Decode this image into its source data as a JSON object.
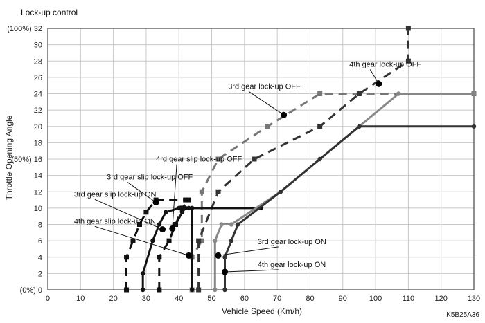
{
  "chart_data": {
    "type": "line",
    "title": "Lock-up control",
    "xlabel": "Vehicle Speed (Km/h)",
    "ylabel": "Throttle Opening Angle",
    "xlim": [
      0,
      130
    ],
    "ylim": [
      0,
      32
    ],
    "x_ticks": [
      0,
      10,
      20,
      30,
      40,
      50,
      60,
      70,
      80,
      90,
      100,
      110,
      120,
      130
    ],
    "y_ticks": [
      0,
      2,
      4,
      6,
      8,
      10,
      12,
      14,
      16,
      18,
      20,
      22,
      24,
      26,
      28,
      30,
      32
    ],
    "y_tick_labels": [
      "(0%) 0",
      "2",
      "4",
      "6",
      "8",
      "10",
      "12",
      "14",
      "(50%) 16",
      "18",
      "20",
      "22",
      "24",
      "26",
      "28",
      "30",
      "(100%) 32"
    ],
    "grid": true,
    "code": "K5B25A36",
    "series": [
      {
        "name": "3rd gear lock-up OFF",
        "color": "#777777",
        "style": "dashed",
        "x": [
          44,
          44,
          47,
          47,
          52,
          67,
          83,
          130
        ],
        "y": [
          0,
          4,
          6,
          12,
          16,
          20,
          24,
          24
        ]
      },
      {
        "name": "4th gear lock-up OFF",
        "color": "#333333",
        "style": "dashed",
        "x": [
          46,
          46,
          52,
          63,
          83,
          95,
          110,
          110
        ],
        "y": [
          0,
          6,
          12,
          16,
          20,
          24,
          28,
          32
        ]
      },
      {
        "name": "4rd gear slip lock-up OFF",
        "color": "#111111",
        "style": "dashed",
        "x": [
          34,
          34,
          37,
          39,
          39,
          41,
          43
        ],
        "y": [
          0,
          4,
          6,
          8,
          8,
          10,
          11
        ]
      },
      {
        "name": "3rd gear slip lock-up OFF",
        "color": "#111111",
        "style": "dashed",
        "x": [
          24,
          24,
          26,
          28,
          30,
          33,
          42
        ],
        "y": [
          0,
          4,
          6,
          8,
          9.5,
          11,
          11
        ]
      },
      {
        "name": "3rd gear slip lock-up ON",
        "color": "#111111",
        "style": "solid",
        "x": [
          29,
          29,
          32,
          34,
          36,
          40,
          65
        ],
        "y": [
          0,
          2,
          6,
          8,
          9.5,
          10,
          10
        ]
      },
      {
        "name": "4th gear slip lock-up ON",
        "color": "#111111",
        "style": "solid",
        "x": [
          38,
          39,
          39,
          41,
          42,
          43,
          44,
          44
        ],
        "y": [
          7.5,
          8,
          8,
          9.5,
          10,
          10,
          10,
          0
        ]
      },
      {
        "name": "3rd gear lock-up ON",
        "color": "#888888",
        "style": "solid",
        "x": [
          51,
          51,
          53,
          56,
          71,
          83,
          95,
          107,
          130
        ],
        "y": [
          0,
          6,
          8,
          8,
          12,
          16,
          20,
          24,
          24
        ]
      },
      {
        "name": "4th gear lock-up ON",
        "color": "#333333",
        "style": "solid",
        "x": [
          54,
          54,
          56,
          58,
          71,
          83,
          95,
          130
        ],
        "y": [
          0,
          4,
          6,
          8,
          12,
          16,
          20,
          20
        ]
      }
    ],
    "annotations": [
      {
        "text": "4th gear lock-up OFF",
        "point": [
          101,
          25.2
        ],
        "label": [
          92,
          27.3
        ]
      },
      {
        "text": "3rd gear lock-up OFF",
        "point": [
          72,
          21.4
        ],
        "label": [
          55,
          24.6
        ]
      },
      {
        "text": "4rd gear slip lock-up OFF",
        "point": [
          38,
          7.5
        ],
        "label": [
          33,
          15.7
        ]
      },
      {
        "text": "3rd gear slip lock-up OFF",
        "point": [
          33,
          10.7
        ],
        "label": [
          18,
          13.5
        ]
      },
      {
        "text": "3rd gear slip lock-up ON",
        "point": [
          35,
          7.4
        ],
        "label": [
          8,
          11.4
        ]
      },
      {
        "text": "4th gear slip lock-up ON",
        "point": [
          43,
          4.2
        ],
        "label": [
          8,
          8.1
        ]
      },
      {
        "text": "3rd gear lock-up ON",
        "point": [
          52,
          4.2
        ],
        "label": [
          64,
          5.6
        ]
      },
      {
        "text": "4th gear lock-up ON",
        "point": [
          54,
          2.2
        ],
        "label": [
          64,
          2.8
        ]
      }
    ]
  }
}
